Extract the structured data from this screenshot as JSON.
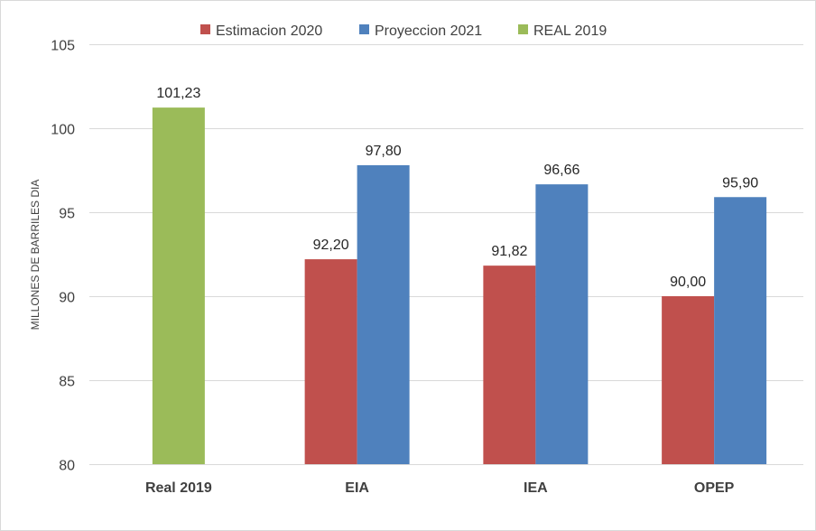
{
  "chart_data": {
    "type": "bar",
    "title": "",
    "xlabel": "",
    "ylabel": "MILLONES DE BARRILES DIA",
    "ylim": [
      80,
      105
    ],
    "yticks": [
      80,
      85,
      90,
      95,
      100,
      105
    ],
    "grid": true,
    "legend_position": "top",
    "categories": [
      "Real 2019",
      "EIA",
      "IEA",
      "OPEP"
    ],
    "series": [
      {
        "name": "Estimacion 2020",
        "color": "#c0504d",
        "values": [
          null,
          92.2,
          91.82,
          90.0
        ],
        "labels": [
          null,
          "92,20",
          "91,82",
          "90,00"
        ]
      },
      {
        "name": "Proyeccion 2021",
        "color": "#4f81bd",
        "values": [
          null,
          97.8,
          96.66,
          95.9
        ],
        "labels": [
          null,
          "97,80",
          "96,66",
          "95,90"
        ]
      },
      {
        "name": "REAL 2019",
        "color": "#9bbb59",
        "values": [
          101.23,
          null,
          null,
          null
        ],
        "labels": [
          "101,23",
          null,
          null,
          null
        ]
      }
    ]
  }
}
